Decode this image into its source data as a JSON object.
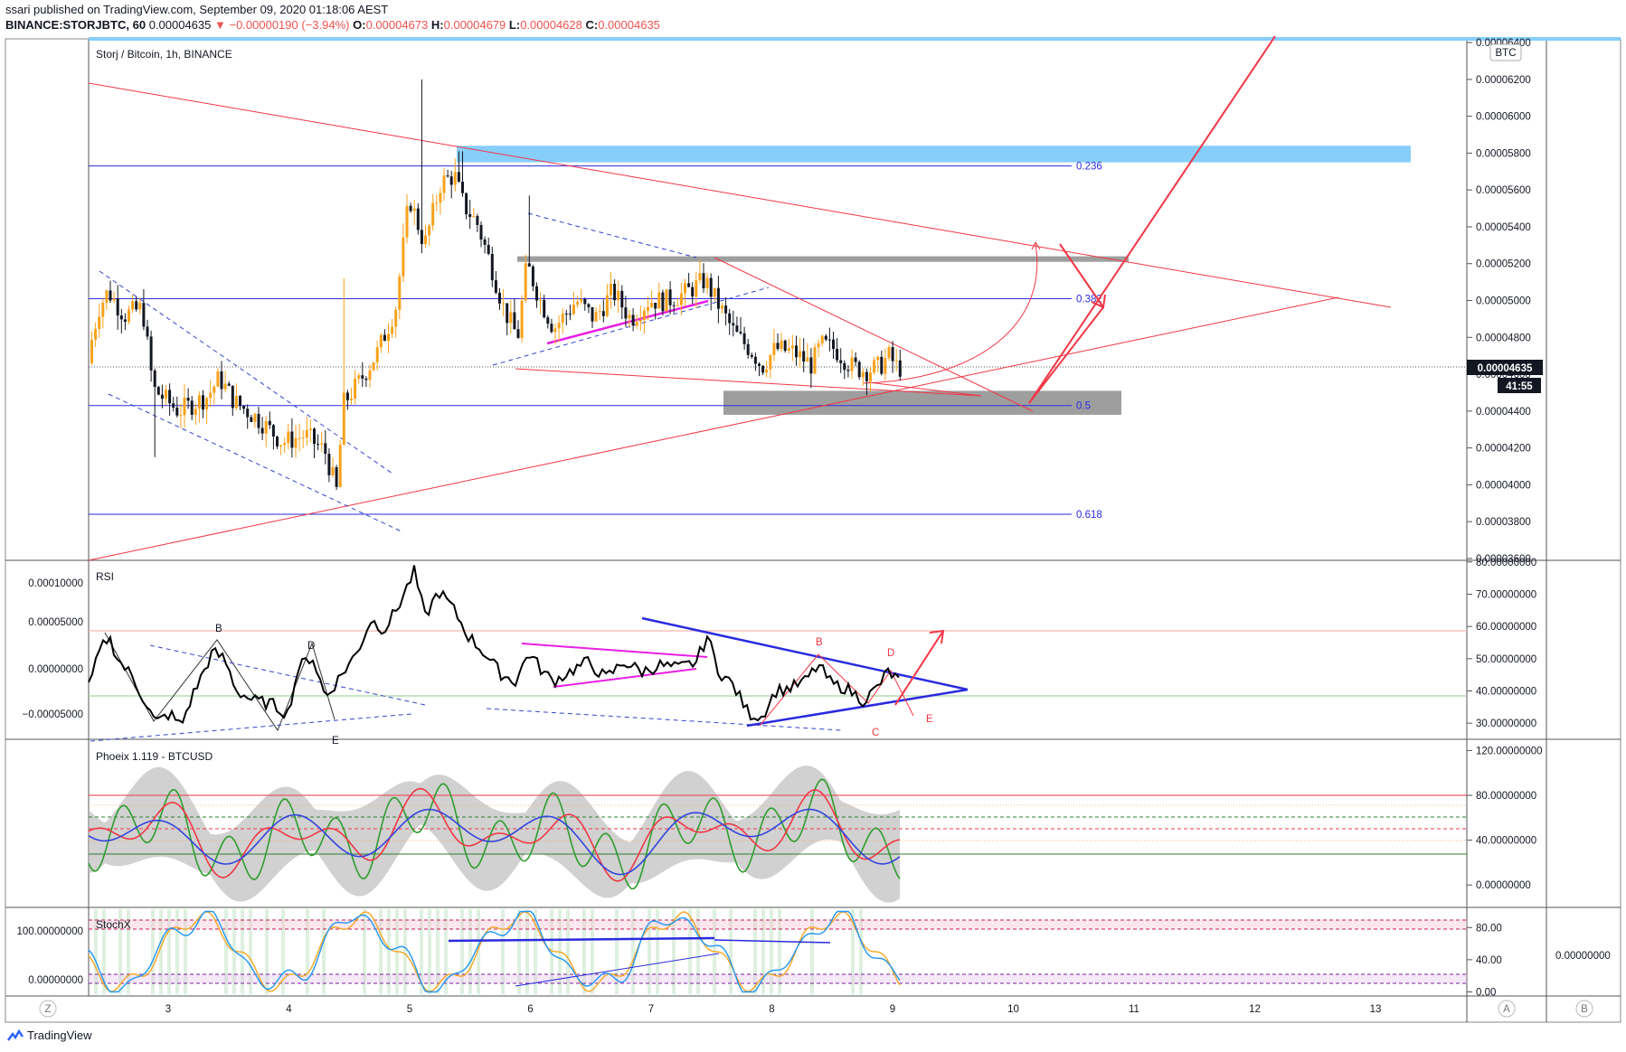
{
  "header": {
    "published": "ssari published on TradingView.com, September 09, 2020 01:18:06 AEST",
    "symbol": "BINANCE:STORJBTC, 60",
    "last": "0.00004635",
    "change": "▼ −0.00000190 (−3.94%)",
    "o_label": "O:",
    "o": "0.00004673",
    "h_label": "H:",
    "h": "0.00004679",
    "l_label": "L:",
    "l": "0.00004628",
    "c_label": "C:",
    "c": "0.00004635"
  },
  "main_title": "Storj / Bitcoin, 1h, BINANCE",
  "currency_badge": "BTC",
  "price_badge": "0.00004635",
  "countdown_badge": "41:55",
  "fib_labels": [
    "0.236",
    "0.382",
    "0.5",
    "0.618"
  ],
  "rsi_title": "RSI",
  "phoeix_title": "Phoeix 1.119 - BTCUSD",
  "stochx_title": "StochX",
  "rsi_wave_labels": {
    "B": "B",
    "D": "D",
    "E": "E"
  },
  "rsi_red_labels": {
    "B": "B",
    "C": "C",
    "D": "D",
    "E": "E"
  },
  "time_axis_buttons": {
    "left": "Z",
    "right1": "A",
    "right2": "B"
  },
  "footer_brand": "TradingView",
  "colors": {
    "up": "#f7a21b",
    "down": "#131722",
    "trendline": "#f23645",
    "fib": "#2a2ae0",
    "zone_blue": "#87cefa",
    "zone_gray": "#9e9e9e",
    "rsi_line": "#000000",
    "magenta": "#e91ee3"
  },
  "chart_data": [
    {
      "type": "candlestick",
      "title": "Storj / Bitcoin, 1h, BINANCE",
      "x_ticks": [
        "3",
        "4",
        "5",
        "6",
        "7",
        "8",
        "9",
        "10",
        "11",
        "12",
        "13"
      ],
      "y_ticks": [
        "0.00006400",
        "0.00006200",
        "0.00006000",
        "0.00005800",
        "0.00005600",
        "0.00005400",
        "0.00005200",
        "0.00005000",
        "0.00004800",
        "0.00004600",
        "0.00004400",
        "0.00004200",
        "0.00004000",
        "0.00003800",
        "0.00003600"
      ],
      "ylim": [
        3.59e-05,
        6.42e-05
      ],
      "last_price": 4.635e-05,
      "fib_levels": [
        {
          "label": "0.236",
          "value": 5.73e-05
        },
        {
          "label": "0.382",
          "value": 5.01e-05
        },
        {
          "label": "0.5",
          "value": 4.43e-05
        },
        {
          "label": "0.618",
          "value": 3.84e-05
        }
      ],
      "zones": [
        {
          "name": "blue-top",
          "y": [
            6.41e-05,
            6.43e-05
          ]
        },
        {
          "name": "blue-resistance",
          "y": [
            5.75e-05,
            5.84e-05
          ]
        },
        {
          "name": "gray-resistance",
          "y": [
            5.21e-05,
            5.24e-05
          ]
        },
        {
          "name": "gray-support",
          "y": [
            4.38e-05,
            4.51e-05
          ]
        }
      ],
      "closes_note": "Hourly STORJ/BTC candles, Sep 2 - Sep 9 2020"
    },
    {
      "type": "line",
      "title": "RSI",
      "y_ticks": [
        "80.00000000",
        "70.00000000",
        "60.00000000",
        "50.00000000",
        "40.00000000",
        "30.00000000"
      ],
      "left_ticks": [
        "0.00010000",
        "0.00005000",
        "0.00000000",
        "−0.00005000"
      ],
      "ylim": [
        25,
        80
      ],
      "bands": [
        60,
        40
      ]
    },
    {
      "type": "line",
      "title": "Phoeix 1.119 - BTCUSD",
      "y_ticks": [
        "120.00000000",
        "80.00000000",
        "40.00000000",
        "0.00000000"
      ],
      "ylim": [
        -20,
        130
      ],
      "levels": [
        80,
        40,
        20
      ]
    },
    {
      "type": "line",
      "title": "StochX",
      "y_ticks": [
        "80.00",
        "40.00",
        "0.00"
      ],
      "left_ticks": [
        "100.00000000",
        "0.00000000"
      ],
      "right_tick": "0.00000000",
      "ylim": [
        -5,
        105
      ],
      "levels": [
        80,
        20
      ]
    }
  ]
}
